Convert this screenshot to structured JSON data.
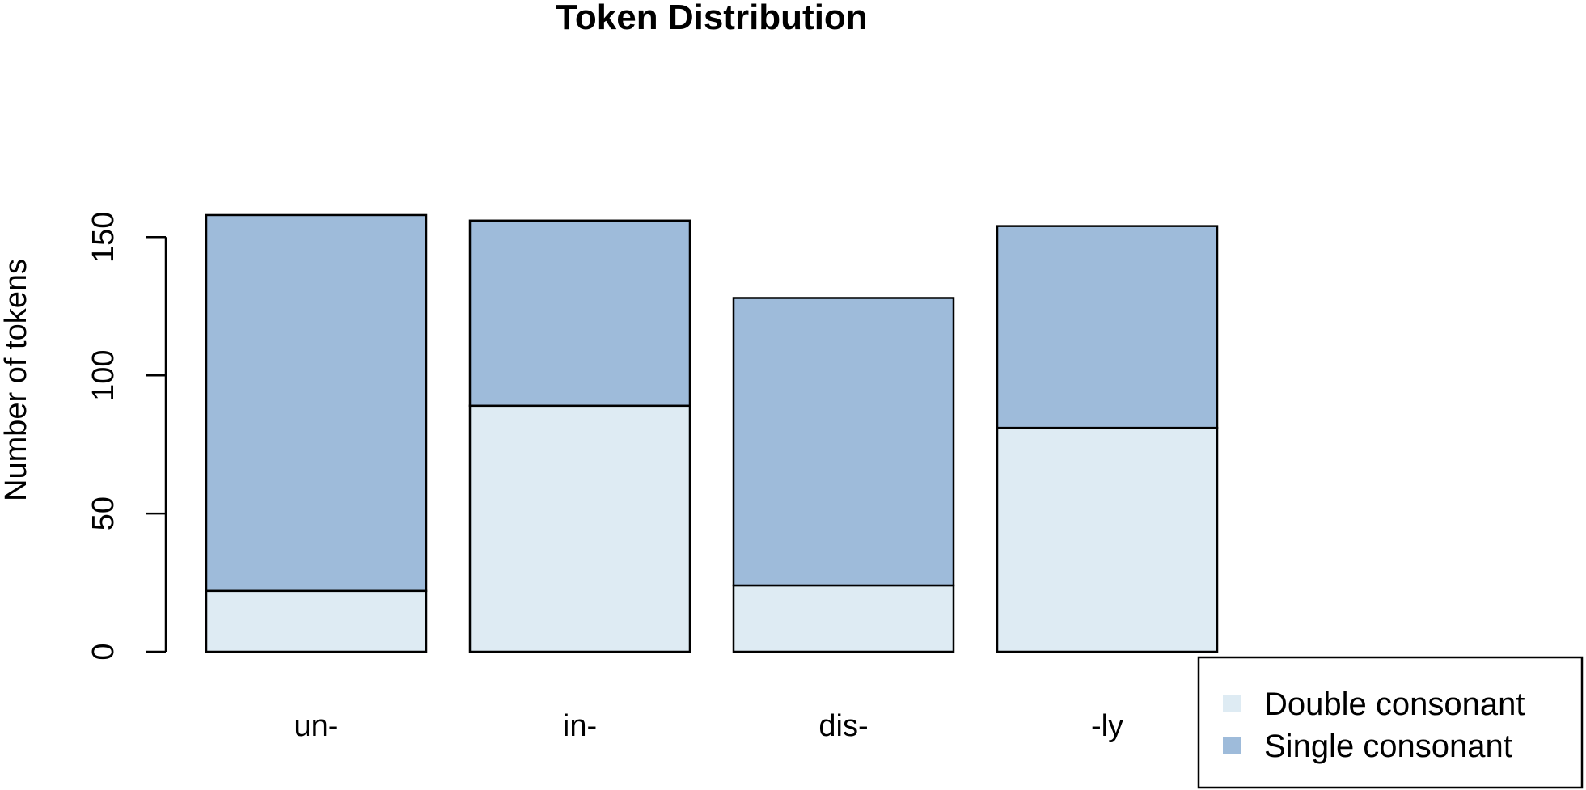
{
  "chart_data": {
    "type": "bar",
    "stacked": true,
    "title": "Token Distribution",
    "xlabel": "",
    "ylabel": "Number of tokens",
    "ylim": [
      0,
      158
    ],
    "yticks": [
      0,
      50,
      100,
      150
    ],
    "categories": [
      "un-",
      "in-",
      "dis-",
      "-ly"
    ],
    "series": [
      {
        "name": "Double consonant",
        "color": "#deebf3",
        "values": [
          22,
          89,
          24,
          81
        ]
      },
      {
        "name": "Single consonant",
        "color": "#9ebbda",
        "values": [
          136,
          67,
          104,
          73
        ]
      }
    ],
    "grid": false,
    "legend_position": "bottom-right"
  }
}
